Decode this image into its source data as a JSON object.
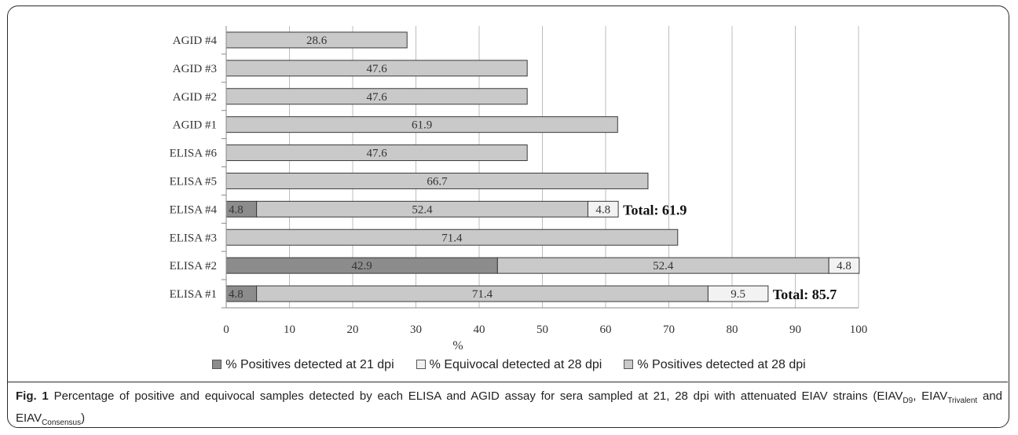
{
  "chart_data": {
    "type": "bar",
    "orientation": "horizontal",
    "stacked": true,
    "categories": [
      "ELISA #1",
      "ELISA #2",
      "ELISA #3",
      "ELISA #4",
      "ELISA #5",
      "ELISA #6",
      "AGID #1",
      "AGID #2",
      "AGID #3",
      "AGID #4"
    ],
    "series": [
      {
        "name": "% Positives detected at 21 dpi",
        "color": "#8c8c8c",
        "values": [
          4.8,
          42.9,
          null,
          4.8,
          null,
          null,
          null,
          null,
          null,
          null
        ],
        "labels": [
          "4.8",
          "42.9",
          "",
          "4.8",
          "",
          "",
          "",
          "",
          "",
          ""
        ]
      },
      {
        "name": "% Positives detected at 28 dpi",
        "color": "#c9c9c9",
        "values": [
          71.4,
          52.4,
          71.4,
          52.4,
          66.7,
          47.6,
          61.9,
          47.6,
          47.6,
          28.6
        ],
        "labels": [
          "71.4",
          "52.4",
          "71.4",
          "52.4",
          "66.7",
          "47.6",
          "61.9",
          "47.6",
          "47.6",
          "28.6"
        ]
      },
      {
        "name": "% Equivocal detected at 28 dpi",
        "color": "#f2f2f2",
        "values": [
          9.5,
          4.8,
          null,
          4.8,
          null,
          null,
          null,
          null,
          null,
          null
        ],
        "labels": [
          "9.5",
          "4.8",
          "",
          "4.8",
          "",
          "",
          "",
          "",
          "",
          ""
        ]
      }
    ],
    "totals": {
      "ELISA #1": "Total: 85.7",
      "ELISA #4": "Total: 61.9"
    },
    "xlabel": "%",
    "xlim": [
      0,
      100
    ],
    "xticks": [
      0,
      10,
      20,
      30,
      40,
      50,
      60,
      70,
      80,
      90,
      100
    ],
    "grid": "vertical",
    "legend_position": "bottom",
    "legend": [
      {
        "label": "% Positives detected at 21 dpi",
        "color": "#8c8c8c"
      },
      {
        "label": "% Equivocal detected at 28 dpi",
        "color": "#f2f2f2"
      },
      {
        "label": "% Positives detected at 28 dpi",
        "color": "#c9c9c9"
      }
    ]
  },
  "caption": {
    "fig_label": "Fig. 1",
    "text_1": "Percentage of positive and equivocal samples detected by each ELISA and AGID assay for sera sampled at 21, 28 dpi with attenuated EIAV strains (EIAV",
    "sub_1": "D9",
    "text_2": ", EIAV",
    "sub_2": "Trivalent",
    "text_3": " and EIAV",
    "sub_3": "Consensus",
    "text_4": ")"
  }
}
